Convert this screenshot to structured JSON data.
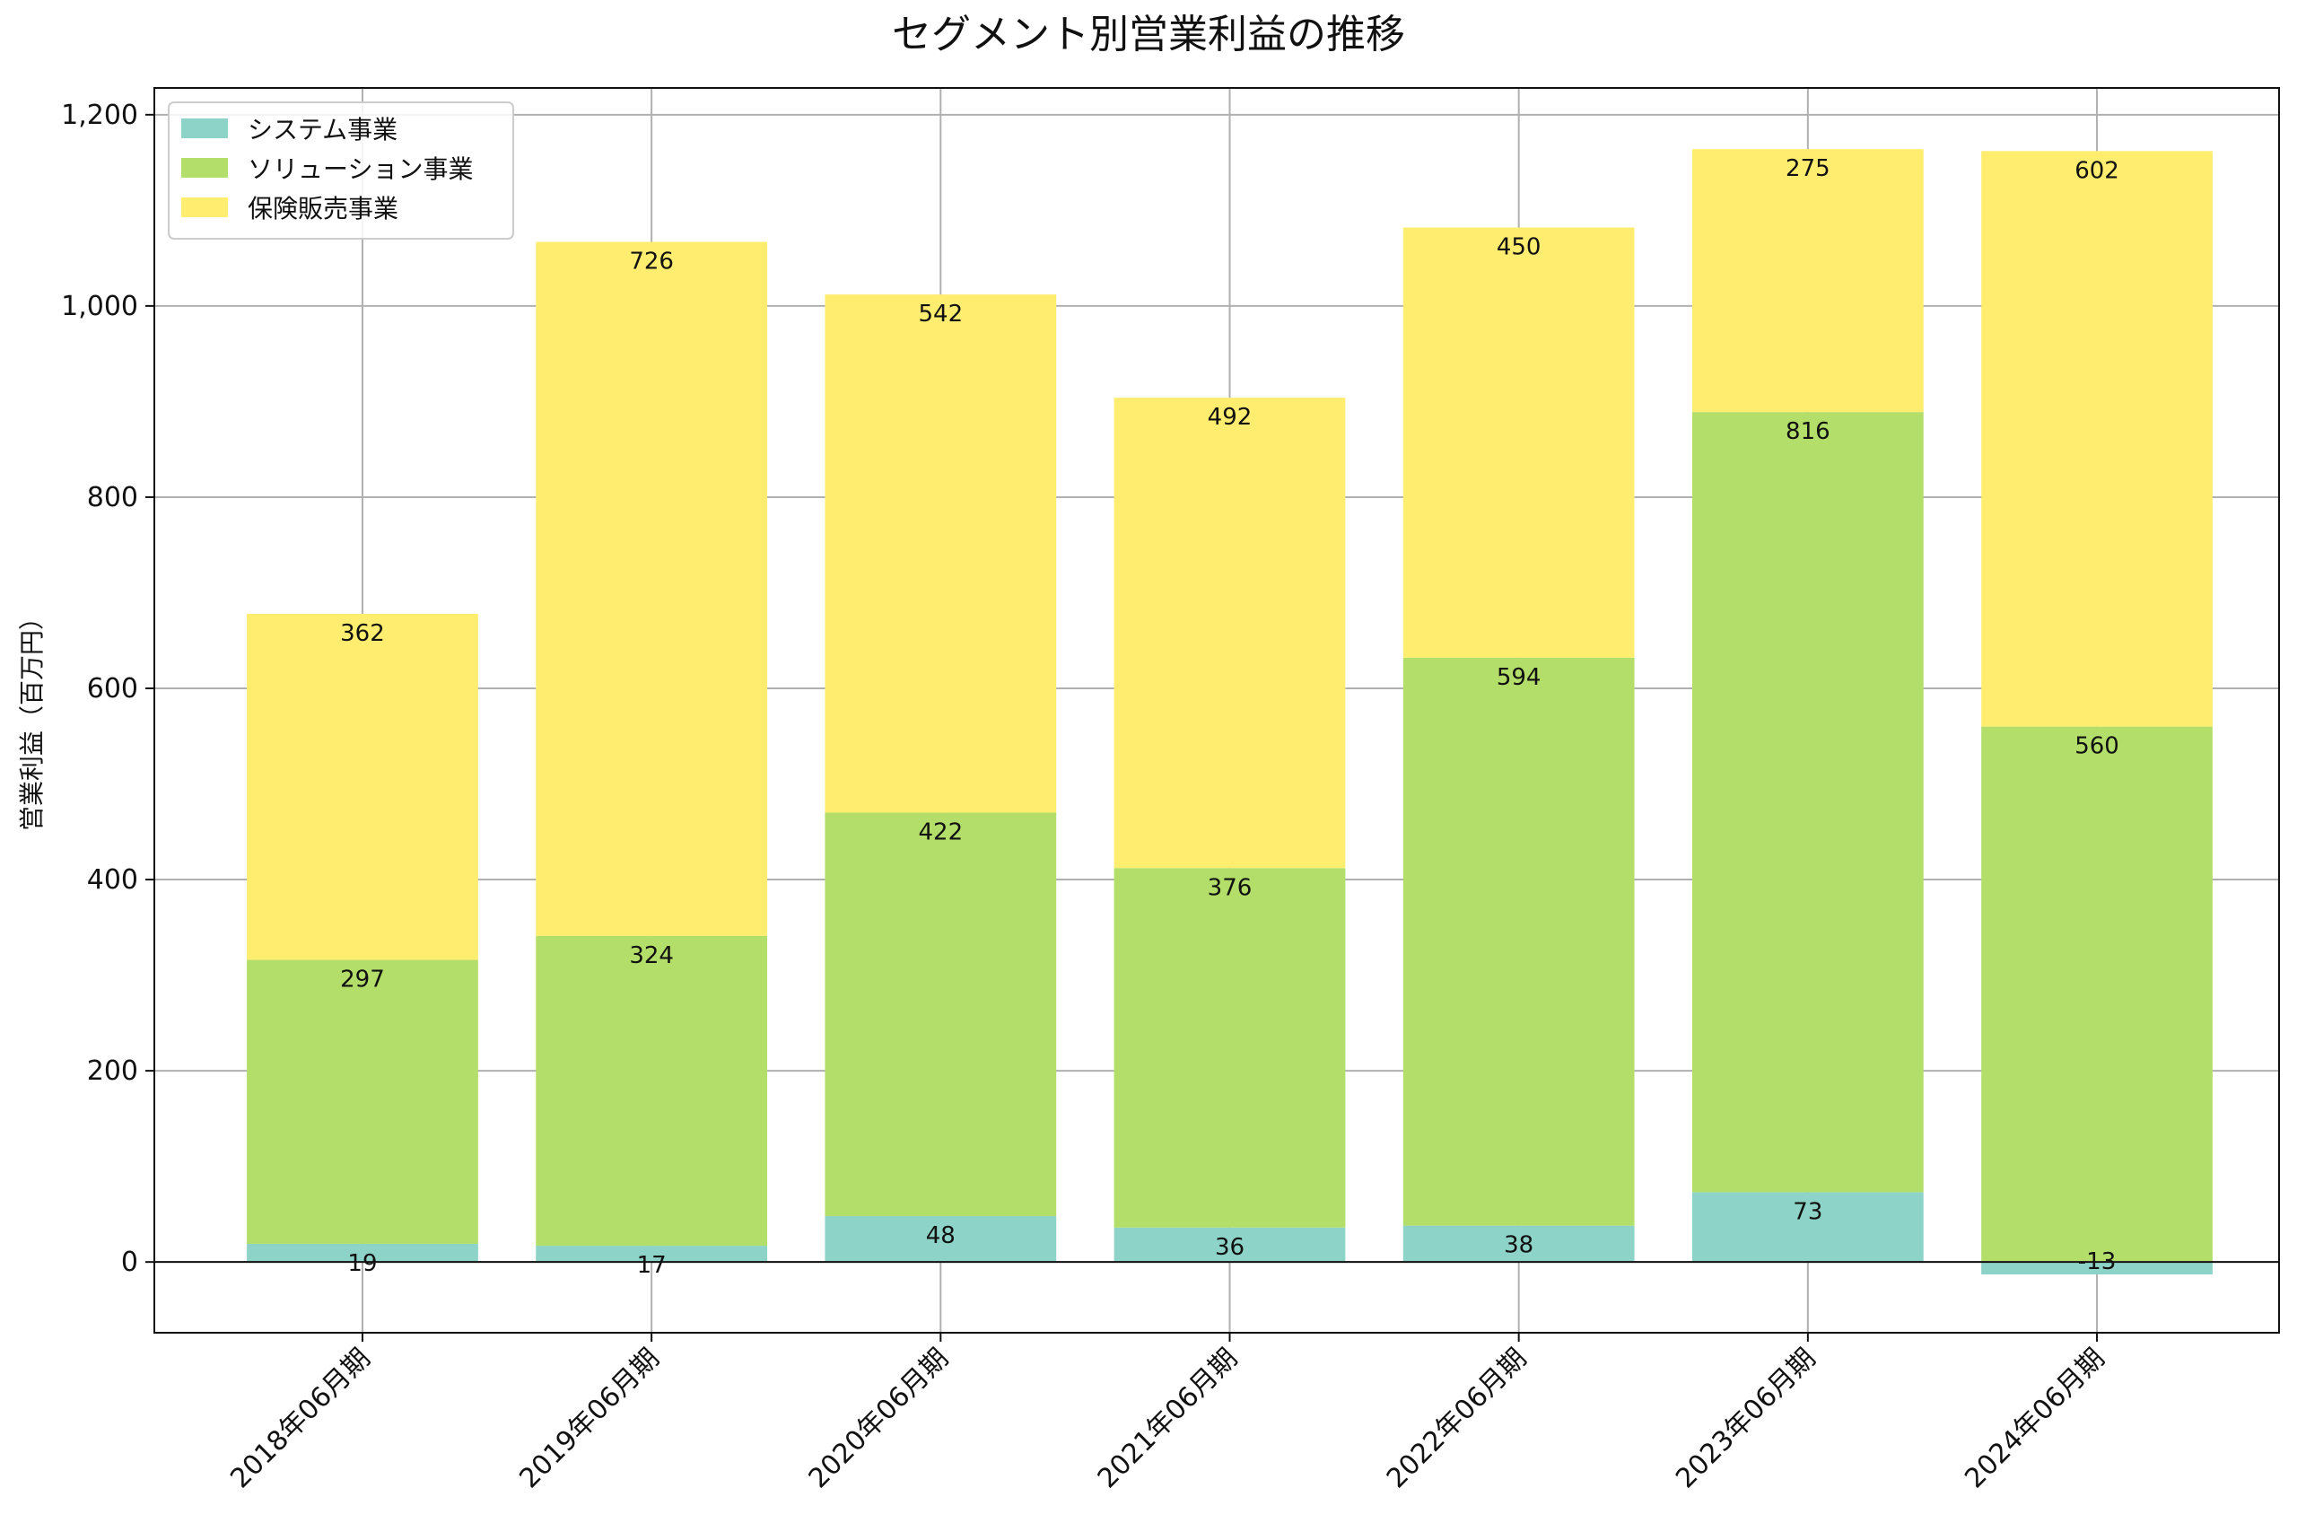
{
  "chart_data": {
    "type": "bar",
    "stacked": true,
    "title": "セグメント別営業利益の推移",
    "xlabel": "",
    "ylabel": "営業利益（百万円）",
    "ylim": [
      -74,
      1228
    ],
    "yticks": [
      0,
      200,
      400,
      600,
      800,
      1000,
      1200
    ],
    "ytick_labels": [
      "0",
      "200",
      "400",
      "600",
      "800",
      "1,000",
      "1,200"
    ],
    "grid": true,
    "legend_position": "top-left",
    "categories": [
      "2018年06月期",
      "2019年06月期",
      "2020年06月期",
      "2021年06月期",
      "2022年06月期",
      "2023年06月期",
      "2024年06月期"
    ],
    "series": [
      {
        "name": "システム事業",
        "color": "#8dd3c7",
        "values": [
          19,
          17,
          48,
          36,
          38,
          73,
          -13
        ]
      },
      {
        "name": "ソリューション事業",
        "color": "#b3de69",
        "values": [
          297,
          324,
          422,
          376,
          594,
          816,
          560
        ]
      },
      {
        "name": "保険販売事業",
        "color": "#ffed6f",
        "values": [
          362,
          726,
          542,
          492,
          450,
          275,
          602
        ]
      }
    ]
  }
}
